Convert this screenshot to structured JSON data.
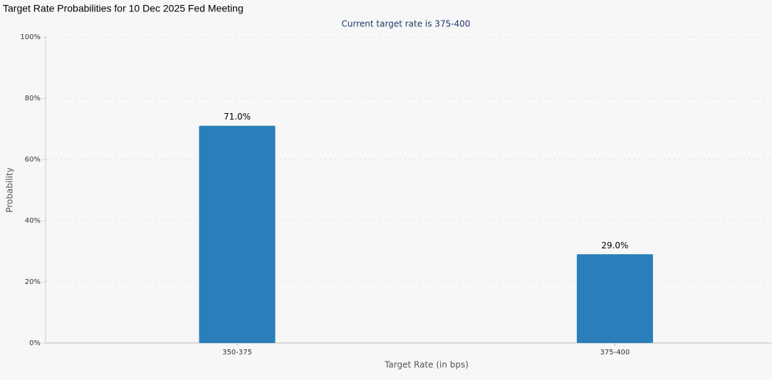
{
  "chart_data": {
    "type": "bar",
    "title": "Target Rate Probabilities for 10 Dec 2025 Fed Meeting",
    "subtitle": "Current target rate is 375-400",
    "x_label": "Target Rate (in bps)",
    "y_label": "Probability",
    "categories": [
      "350-375",
      "375-400"
    ],
    "values": [
      71.0,
      29.0
    ],
    "value_labels": [
      "71.0%",
      "29.0%"
    ],
    "color": "#2a7fba",
    "ylim": [
      0,
      100
    ],
    "yticks": [
      {
        "value": 0,
        "label": "0%"
      },
      {
        "value": 20,
        "label": "20%"
      },
      {
        "value": 40,
        "label": "40%"
      },
      {
        "value": 60,
        "label": "60%"
      },
      {
        "value": 80,
        "label": "80%"
      },
      {
        "value": 100,
        "label": "100%"
      }
    ],
    "grid": true
  }
}
